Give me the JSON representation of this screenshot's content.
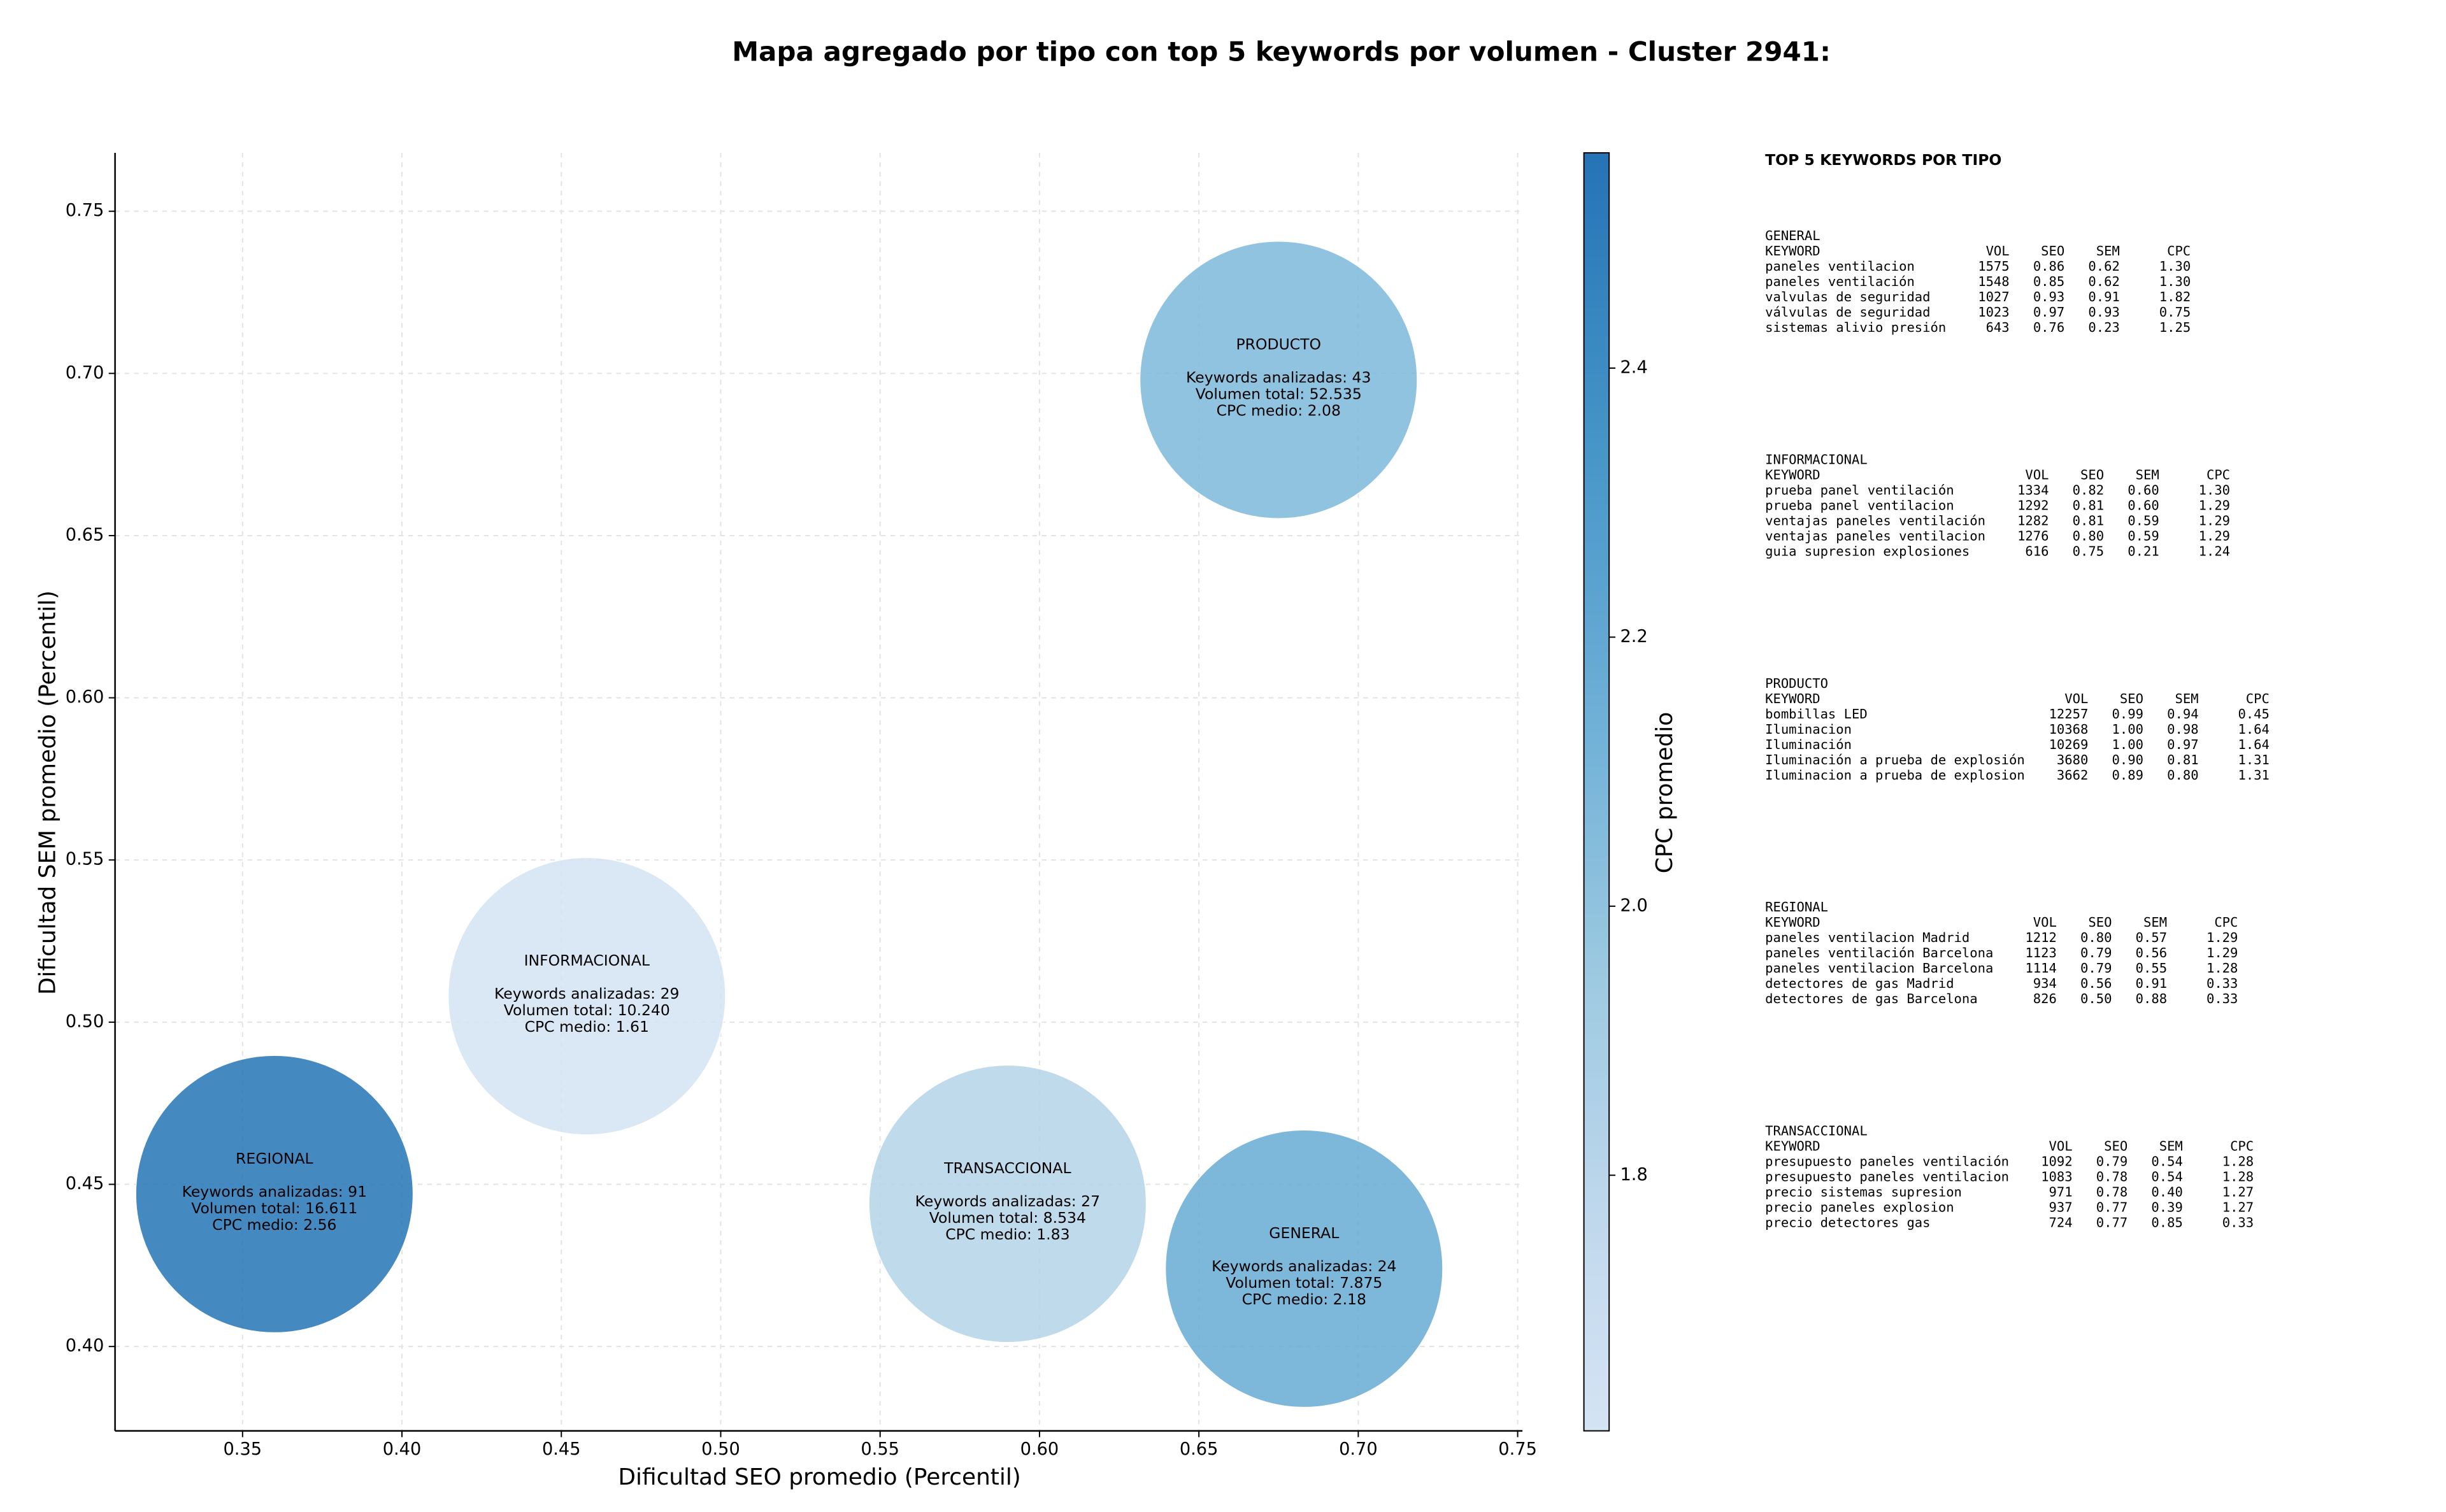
{
  "chart_data": {
    "type": "scatter",
    "title": "Mapa agregado por tipo con top 5 keywords por volumen - Cluster 2941:",
    "xlabel": "Dificultad SEO promedio (Percentil)",
    "ylabel": "Dificultad SEM promedio (Percentil)",
    "xlim": [
      0.31,
      0.7515
    ],
    "ylim": [
      0.374,
      0.768
    ],
    "xticks": [
      0.35,
      {
        "value": 0.4,
        "label": "0.40"
      },
      0.45,
      {
        "value": 0.5,
        "label": "0.50"
      },
      0.55,
      {
        "value": 0.6,
        "label": "0.60"
      },
      0.65,
      {
        "value": 0.7,
        "label": "0.70"
      },
      0.75
    ],
    "yticks": [
      {
        "value": 0.4,
        "label": "0.40"
      },
      0.45,
      {
        "value": 0.5,
        "label": "0.50"
      },
      0.55,
      {
        "value": 0.6,
        "label": "0.60"
      },
      0.65,
      {
        "value": 0.7,
        "label": "0.70"
      },
      0.75
    ],
    "grid": true,
    "colorbar": {
      "label": "CPC promedio",
      "colormap": "Blues",
      "clim": [
        1.61,
        2.56
      ],
      "ticks": [
        1.8,
        {
          "value": 2.0,
          "label": "2.0"
        },
        2.2,
        2.4
      ]
    },
    "points": [
      {
        "label": "PRODUCTO",
        "x": 0.675,
        "y": 0.698,
        "cpc": 2.08,
        "lines": [
          "Keywords analizadas: 43",
          "Volumen total: 52.535",
          "CPC medio: 2.08"
        ]
      },
      {
        "label": "INFORMACIONAL",
        "x": 0.458,
        "y": 0.508,
        "cpc": 1.61,
        "lines": [
          "Keywords analizadas: 29",
          "Volumen total: 10.240",
          "CPC medio: 1.61"
        ]
      },
      {
        "label": "REGIONAL",
        "x": 0.36,
        "y": 0.447,
        "cpc": 2.56,
        "lines": [
          "Keywords analizadas: 91",
          "Volumen total: 16.611",
          "CPC medio: 2.56"
        ]
      },
      {
        "label": "TRANSACCIONAL",
        "x": 0.59,
        "y": 0.444,
        "cpc": 1.83,
        "lines": [
          "Keywords analizadas: 27",
          "Volumen total: 8.534",
          "CPC medio: 1.83"
        ]
      },
      {
        "label": "GENERAL",
        "x": 0.683,
        "y": 0.424,
        "cpc": 2.18,
        "lines": [
          "Keywords analizadas: 24",
          "Volumen total: 7.875",
          "CPC medio: 2.18"
        ]
      }
    ]
  },
  "side_panel": {
    "title": "TOP 5 KEYWORDS POR TIPO",
    "columns": [
      "KEYWORD",
      "VOL",
      "SEO",
      "SEM",
      "CPC"
    ],
    "tables": [
      {
        "name": "GENERAL",
        "rows": [
          [
            "paneles ventilacion",
            "1575",
            "0.86",
            "0.62",
            "1.30"
          ],
          [
            "paneles ventilación",
            "1548",
            "0.85",
            "0.62",
            "1.30"
          ],
          [
            "valvulas de seguridad",
            "1027",
            "0.93",
            "0.91",
            "1.82"
          ],
          [
            "válvulas de seguridad",
            "1023",
            "0.97",
            "0.93",
            "0.75"
          ],
          [
            "sistemas alivio presión",
            "643",
            "0.76",
            "0.23",
            "1.25"
          ]
        ]
      },
      {
        "name": "INFORMACIONAL",
        "rows": [
          [
            "prueba panel ventilación",
            "1334",
            "0.82",
            "0.60",
            "1.30"
          ],
          [
            "prueba panel ventilacion",
            "1292",
            "0.81",
            "0.60",
            "1.29"
          ],
          [
            "ventajas paneles ventilación",
            "1282",
            "0.81",
            "0.59",
            "1.29"
          ],
          [
            "ventajas paneles ventilacion",
            "1276",
            "0.80",
            "0.59",
            "1.29"
          ],
          [
            "guia supresion explosiones",
            "616",
            "0.75",
            "0.21",
            "1.24"
          ]
        ]
      },
      {
        "name": "PRODUCTO",
        "rows": [
          [
            "bombillas LED",
            "12257",
            "0.99",
            "0.94",
            "0.45"
          ],
          [
            "Iluminacion",
            "10368",
            "1.00",
            "0.98",
            "1.64"
          ],
          [
            "Iluminación",
            "10269",
            "1.00",
            "0.97",
            "1.64"
          ],
          [
            "Iluminación a prueba de explosión",
            "3680",
            "0.90",
            "0.81",
            "1.31"
          ],
          [
            "Iluminacion a prueba de explosion",
            "3662",
            "0.89",
            "0.80",
            "1.31"
          ]
        ]
      },
      {
        "name": "REGIONAL",
        "rows": [
          [
            "paneles ventilacion Madrid",
            "1212",
            "0.80",
            "0.57",
            "1.29"
          ],
          [
            "paneles ventilación Barcelona",
            "1123",
            "0.79",
            "0.56",
            "1.29"
          ],
          [
            "paneles ventilacion Barcelona",
            "1114",
            "0.79",
            "0.55",
            "1.28"
          ],
          [
            "detectores de gas Madrid",
            "934",
            "0.56",
            "0.91",
            "0.33"
          ],
          [
            "detectores de gas Barcelona",
            "826",
            "0.50",
            "0.88",
            "0.33"
          ]
        ]
      },
      {
        "name": "TRANSACCIONAL",
        "rows": [
          [
            "presupuesto paneles ventilación",
            "1092",
            "0.79",
            "0.54",
            "1.28"
          ],
          [
            "presupuesto paneles ventilacion",
            "1083",
            "0.78",
            "0.54",
            "1.28"
          ],
          [
            "precio sistemas supresion",
            "971",
            "0.78",
            "0.40",
            "1.27"
          ],
          [
            "precio paneles explosion",
            "937",
            "0.77",
            "0.39",
            "1.27"
          ],
          [
            "precio detectores gas",
            "724",
            "0.77",
            "0.85",
            "0.33"
          ]
        ]
      }
    ]
  }
}
